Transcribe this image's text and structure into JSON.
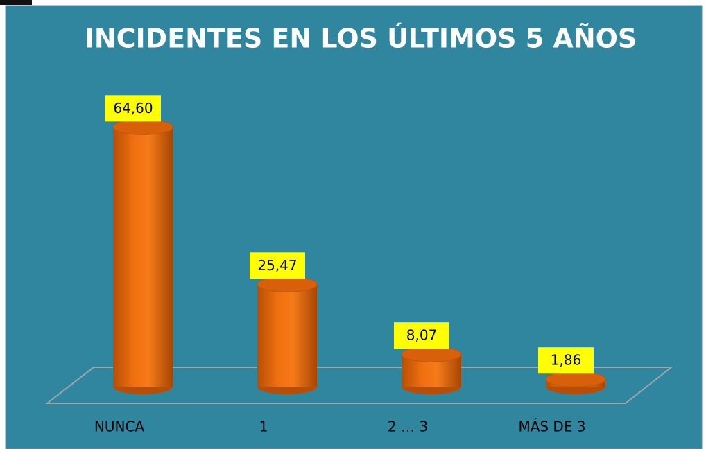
{
  "chart_data": {
    "type": "bar",
    "title": "INCIDENTES EN LOS ÚLTIMOS 5 AÑOS",
    "categories": [
      "NUNCA",
      "1",
      "2 … 3",
      "MÁS DE 3"
    ],
    "values": [
      64.6,
      25.47,
      8.07,
      1.86
    ],
    "value_labels": [
      "64,60",
      "25,47",
      "8,07",
      "1,86"
    ],
    "color": "#f07010"
  }
}
